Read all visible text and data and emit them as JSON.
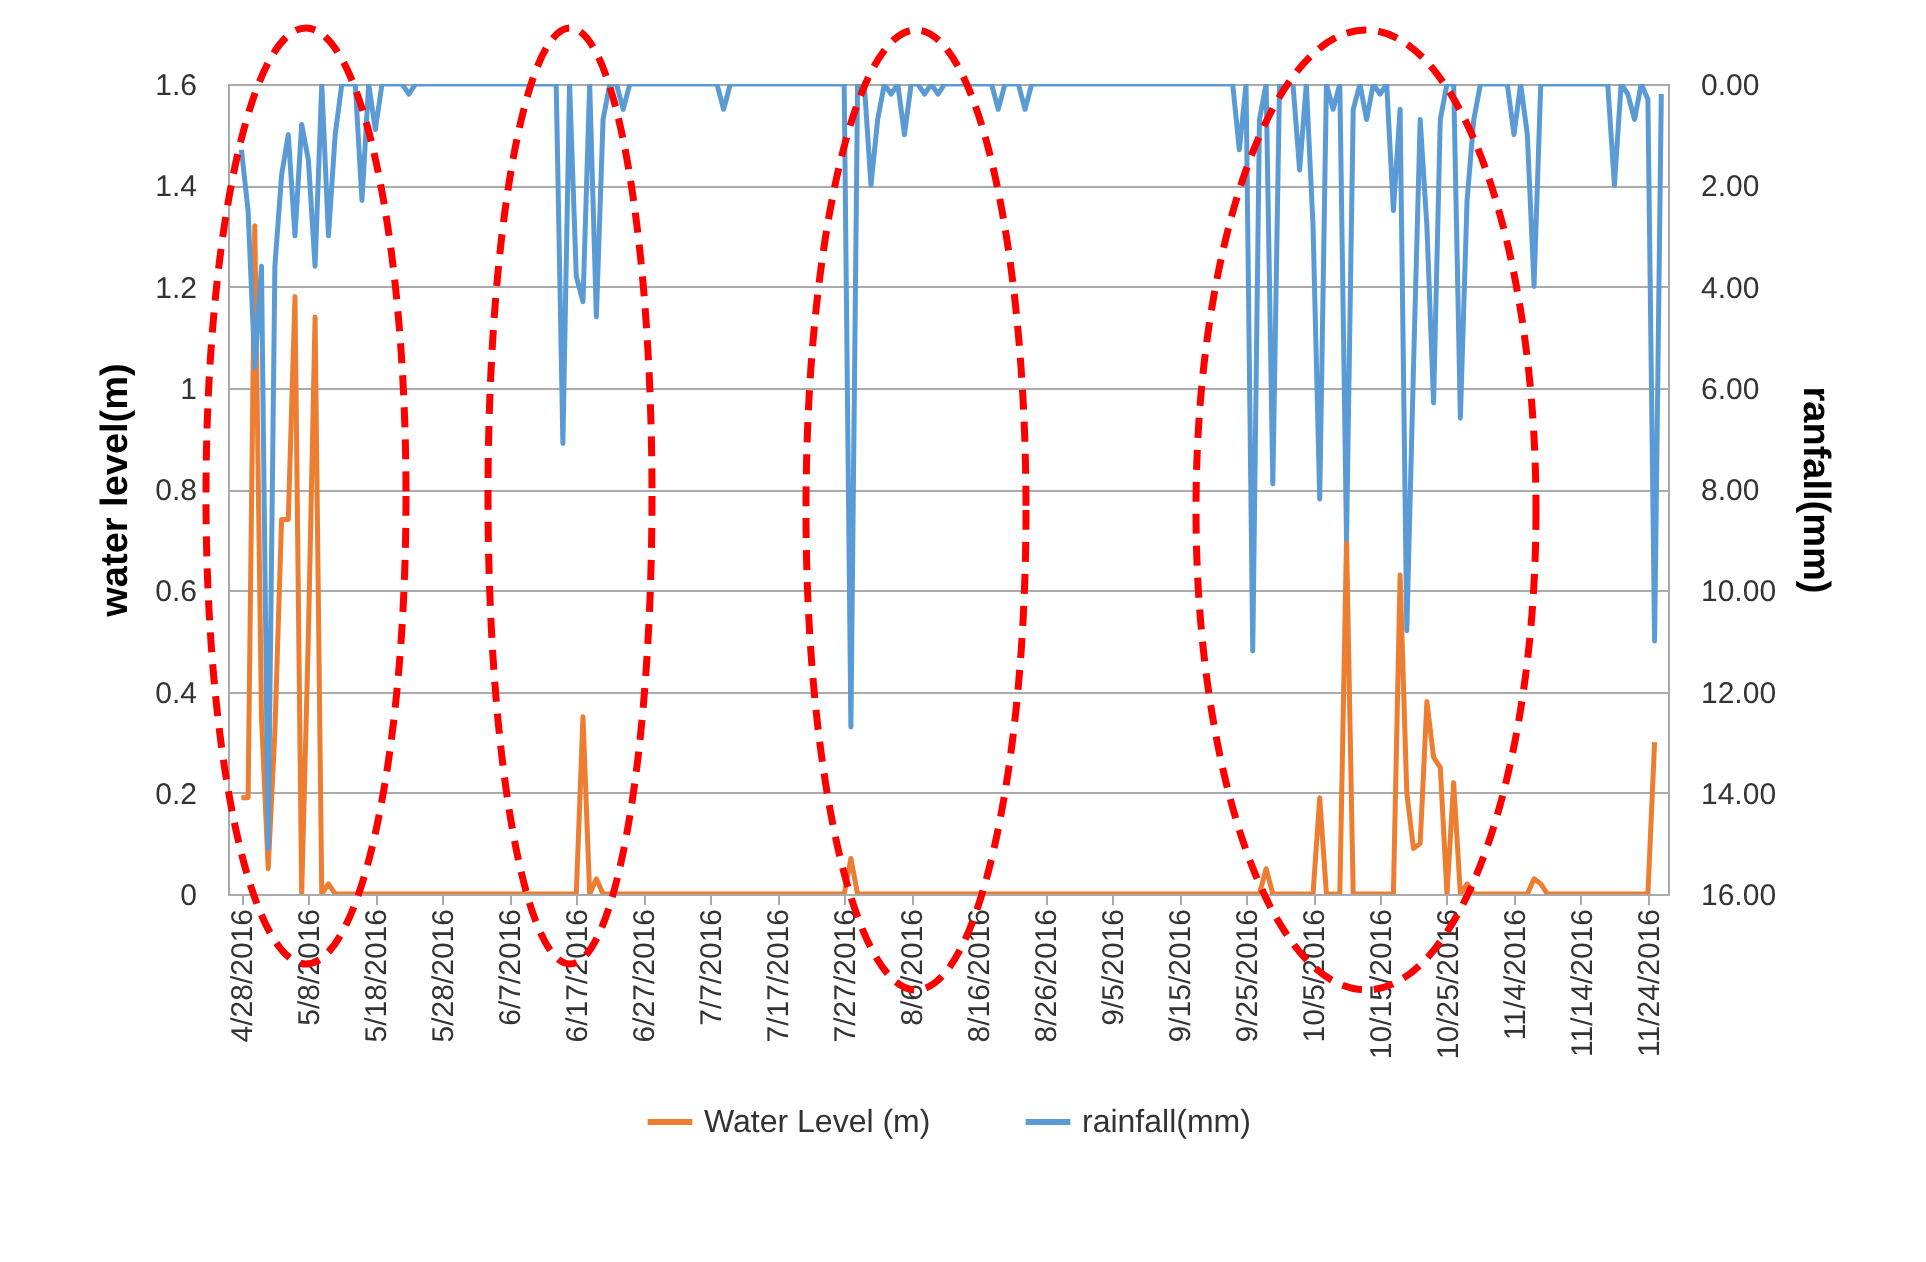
{
  "chart_data": {
    "type": "line",
    "xlabel": null,
    "ylabel": "water level(m)",
    "y2label": "ranfall(mm)",
    "xlim": [
      "2016-04-26",
      "2016-11-27"
    ],
    "xticks": [
      {
        "value": "2016-04-28",
        "label": "4/28/2016"
      },
      {
        "value": "2016-05-08",
        "label": "5/8/2016"
      },
      {
        "value": "2016-05-18",
        "label": "5/18/2016"
      },
      {
        "value": "2016-05-28",
        "label": "5/28/2016"
      },
      {
        "value": "2016-06-07",
        "label": "6/7/2016"
      },
      {
        "value": "2016-06-17",
        "label": "6/17/2016"
      },
      {
        "value": "2016-06-27",
        "label": "6/27/2016"
      },
      {
        "value": "2016-07-07",
        "label": "7/7/2016"
      },
      {
        "value": "2016-07-17",
        "label": "7/17/2016"
      },
      {
        "value": "2016-07-27",
        "label": "7/27/2016"
      },
      {
        "value": "2016-08-06",
        "label": "8/6/2016"
      },
      {
        "value": "2016-08-16",
        "label": "8/16/2016"
      },
      {
        "value": "2016-08-26",
        "label": "8/26/2016"
      },
      {
        "value": "2016-09-05",
        "label": "9/5/2016"
      },
      {
        "value": "2016-09-15",
        "label": "9/15/2016"
      },
      {
        "value": "2016-09-25",
        "label": "9/25/2016"
      },
      {
        "value": "2016-10-05",
        "label": "10/5/2016"
      },
      {
        "value": "2016-10-15",
        "label": "10/15/2016"
      },
      {
        "value": "2016-10-25",
        "label": "10/25/2016"
      },
      {
        "value": "2016-11-04",
        "label": "11/4/2016"
      },
      {
        "value": "2016-11-14",
        "label": "11/14/2016"
      },
      {
        "value": "2016-11-24",
        "label": "11/24/2016"
      }
    ],
    "ylim": [
      0,
      1.6
    ],
    "yticks": [
      0,
      0.2,
      0.4,
      0.6,
      0.8,
      1,
      1.2,
      1.4,
      1.6
    ],
    "y2lim": [
      16,
      0
    ],
    "y2ticks": [
      {
        "value": 0,
        "label": "0.00"
      },
      {
        "value": 2,
        "label": "2.00"
      },
      {
        "value": 4,
        "label": "4.00"
      },
      {
        "value": 6,
        "label": "6.00"
      },
      {
        "value": 8,
        "label": "8.00"
      },
      {
        "value": 10,
        "label": "10.00"
      },
      {
        "value": 12,
        "label": "12.00"
      },
      {
        "value": 14,
        "label": "14.00"
      },
      {
        "value": 16,
        "label": "16.00"
      }
    ],
    "grid": "y",
    "legend": "bottom",
    "series": [
      {
        "name": "Water Level (m)",
        "color": "#ed7d31",
        "x": [
          "2016-04-28",
          "2016-04-29",
          "2016-04-30",
          "2016-05-01",
          "2016-05-02",
          "2016-05-03",
          "2016-05-04",
          "2016-05-05",
          "2016-05-06",
          "2016-05-07",
          "2016-05-08",
          "2016-05-09",
          "2016-05-10",
          "2016-05-11",
          "2016-05-12",
          "2016-06-17",
          "2016-06-18",
          "2016-06-19",
          "2016-06-20",
          "2016-06-21",
          "2016-07-27",
          "2016-07-28",
          "2016-07-29",
          "2016-09-27",
          "2016-09-28",
          "2016-09-29",
          "2016-10-05",
          "2016-10-06",
          "2016-10-07",
          "2016-10-09",
          "2016-10-10",
          "2016-10-11",
          "2016-10-17",
          "2016-10-18",
          "2016-10-19",
          "2016-10-20",
          "2016-10-21",
          "2016-10-22",
          "2016-10-23",
          "2016-10-24",
          "2016-10-25",
          "2016-10-26",
          "2016-10-27",
          "2016-10-28",
          "2016-10-29",
          "2016-11-06",
          "2016-11-07",
          "2016-11-08",
          "2016-11-09",
          "2016-11-24",
          "2016-11-25"
        ],
        "values": [
          0.19,
          0.19,
          1.32,
          0.35,
          0.05,
          0.32,
          0.74,
          0.74,
          1.18,
          0,
          0.51,
          1.14,
          0,
          0.02,
          0,
          0,
          0.35,
          0,
          0.03,
          0,
          0,
          0.07,
          0,
          0,
          0.05,
          0,
          0,
          0.19,
          0,
          0,
          0.7,
          0,
          0,
          0.63,
          0.2,
          0.09,
          0.1,
          0.38,
          0.27,
          0.25,
          0,
          0.22,
          0,
          0.02,
          0,
          0,
          0.03,
          0.02,
          0,
          0,
          0.3
        ]
      },
      {
        "name": "rainfall(mm)",
        "color": "#5b9bd5",
        "axis": "y2",
        "x": [
          "2016-04-28",
          "2016-04-29",
          "2016-04-30",
          "2016-05-01",
          "2016-05-02",
          "2016-05-03",
          "2016-05-04",
          "2016-05-05",
          "2016-05-06",
          "2016-05-07",
          "2016-05-08",
          "2016-05-09",
          "2016-05-10",
          "2016-05-11",
          "2016-05-12",
          "2016-05-13",
          "2016-05-15",
          "2016-05-16",
          "2016-05-17",
          "2016-05-18",
          "2016-05-19",
          "2016-05-22",
          "2016-05-23",
          "2016-05-24",
          "2016-06-14",
          "2016-06-15",
          "2016-06-16",
          "2016-06-17",
          "2016-06-18",
          "2016-06-19",
          "2016-06-20",
          "2016-06-21",
          "2016-06-22",
          "2016-06-23",
          "2016-06-24",
          "2016-06-25",
          "2016-07-08",
          "2016-07-09",
          "2016-07-10",
          "2016-07-27",
          "2016-07-28",
          "2016-07-29",
          "2016-07-30",
          "2016-07-31",
          "2016-08-01",
          "2016-08-02",
          "2016-08-03",
          "2016-08-04",
          "2016-08-05",
          "2016-08-06",
          "2016-08-07",
          "2016-08-08",
          "2016-08-09",
          "2016-08-10",
          "2016-08-11",
          "2016-08-18",
          "2016-08-19",
          "2016-08-20",
          "2016-08-22",
          "2016-08-23",
          "2016-08-24",
          "2016-09-23",
          "2016-09-24",
          "2016-09-25",
          "2016-09-26",
          "2016-09-27",
          "2016-09-28",
          "2016-09-29",
          "2016-09-30",
          "2016-10-02",
          "2016-10-03",
          "2016-10-04",
          "2016-10-05",
          "2016-10-06",
          "2016-10-07",
          "2016-10-08",
          "2016-10-09",
          "2016-10-10",
          "2016-10-11",
          "2016-10-12",
          "2016-10-13",
          "2016-10-14",
          "2016-10-15",
          "2016-10-16",
          "2016-10-17",
          "2016-10-18",
          "2016-10-19",
          "2016-10-20",
          "2016-10-21",
          "2016-10-22",
          "2016-10-23",
          "2016-10-24",
          "2016-10-25",
          "2016-10-26",
          "2016-10-27",
          "2016-10-28",
          "2016-10-29",
          "2016-10-30",
          "2016-11-03",
          "2016-11-04",
          "2016-11-05",
          "2016-11-06",
          "2016-11-07",
          "2016-11-08",
          "2016-11-18",
          "2016-11-19",
          "2016-11-20",
          "2016-11-21",
          "2016-11-22",
          "2016-11-23",
          "2016-11-24",
          "2016-11-25",
          "2016-11-26"
        ],
        "values": [
          1.3,
          2.5,
          5.6,
          3.6,
          15.1,
          3.6,
          1.8,
          1.0,
          3.0,
          0.8,
          1.5,
          3.6,
          0,
          3.0,
          1.0,
          0,
          0,
          2.3,
          0,
          0.9,
          0,
          0,
          0.2,
          0,
          0,
          7.1,
          0,
          3.8,
          4.3,
          0,
          4.6,
          0.7,
          0,
          0,
          0.5,
          0,
          0,
          0.5,
          0,
          0,
          12.7,
          0,
          0,
          2.0,
          0.7,
          0,
          0.2,
          0,
          1.0,
          0,
          0,
          0.2,
          0,
          0.2,
          0,
          0,
          0.5,
          0,
          0,
          0.5,
          0,
          0,
          1.3,
          0,
          11.2,
          0.7,
          0,
          7.9,
          0,
          0,
          1.7,
          0,
          2.8,
          8.2,
          0,
          0.5,
          0,
          9.0,
          0.5,
          0,
          0.7,
          0,
          0.2,
          0,
          2.5,
          0.5,
          10.8,
          5.6,
          0.7,
          2.8,
          6.3,
          0.7,
          0,
          0,
          6.6,
          2.3,
          0.7,
          0,
          0,
          1.0,
          0,
          1.0,
          4.0,
          0,
          0,
          2.0,
          0,
          0.2,
          0.7,
          0,
          0.3,
          11.0,
          0.2
        ]
      }
    ]
  }
}
